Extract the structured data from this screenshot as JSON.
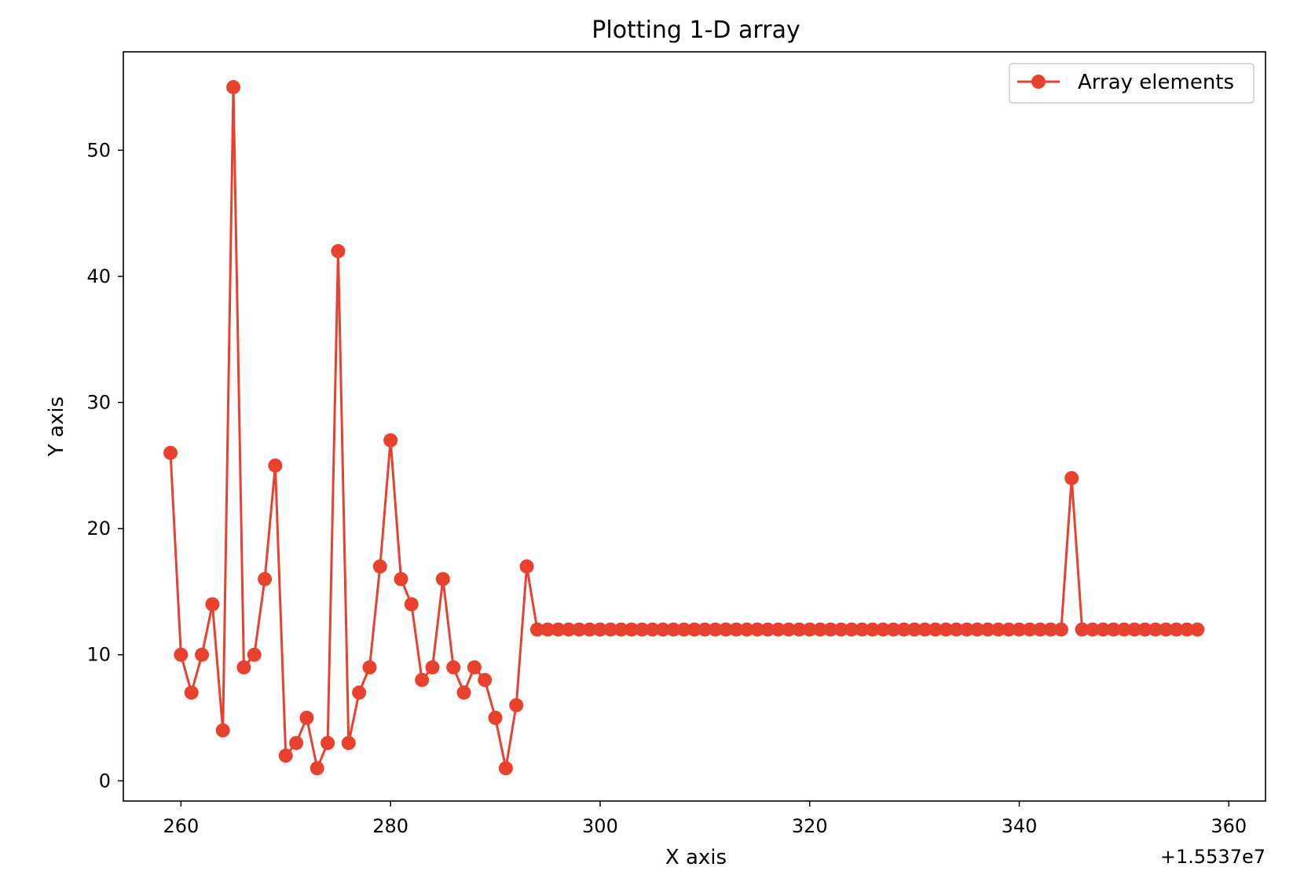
{
  "chart_data": {
    "type": "line",
    "title": "Plotting 1-D array",
    "xlabel": "X axis",
    "ylabel": "Y axis",
    "x_offset_label": "+1.5537e7",
    "xlim": [
      254.5,
      363.5
    ],
    "ylim": [
      -1.6,
      57.8
    ],
    "xticks": [
      260,
      280,
      300,
      320,
      340,
      360
    ],
    "yticks": [
      0,
      10,
      20,
      30,
      40,
      50
    ],
    "grid": false,
    "legend": "top-right",
    "series": [
      {
        "name": "Array elements",
        "color": "#e8412d",
        "marker": "circle",
        "x_start": 259,
        "values": [
          26,
          10,
          7,
          10,
          14,
          4,
          55,
          9,
          10,
          16,
          25,
          2,
          3,
          5,
          1,
          3,
          42,
          3,
          7,
          9,
          17,
          27,
          16,
          14,
          8,
          9,
          16,
          9,
          7,
          9,
          8,
          5,
          1,
          6,
          17,
          12,
          12,
          12,
          12,
          12,
          12,
          12,
          12,
          12,
          12,
          12,
          12,
          12,
          12,
          12,
          12,
          12,
          12,
          12,
          12,
          12,
          12,
          12,
          12,
          12,
          12,
          12,
          12,
          12,
          12,
          12,
          12,
          12,
          12,
          12,
          12,
          12,
          12,
          12,
          12,
          12,
          12,
          12,
          12,
          12,
          12,
          12,
          12,
          12,
          12,
          12,
          24,
          12,
          12,
          12,
          12,
          12,
          12,
          12,
          12,
          12,
          12,
          12,
          12
        ]
      }
    ]
  }
}
